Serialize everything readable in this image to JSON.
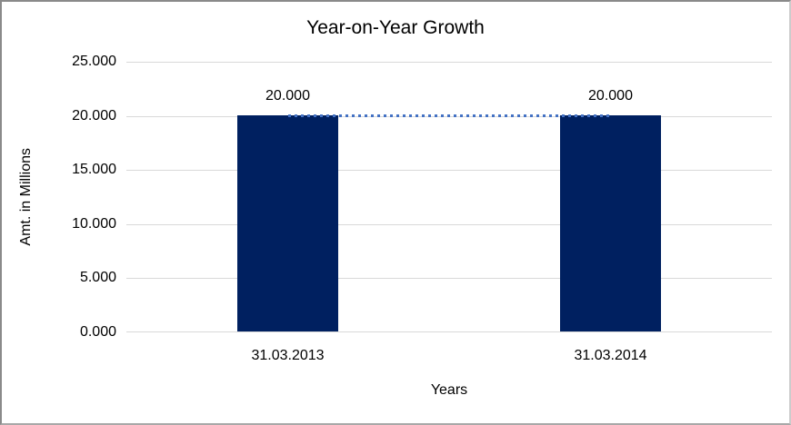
{
  "chart_data": {
    "type": "bar",
    "title": "Year-on-Year Growth",
    "xlabel": "Years",
    "ylabel": "Amt. in Millions",
    "categories": [
      "31.03.2013",
      "31.03.2014"
    ],
    "values": [
      20.0,
      20.0
    ],
    "data_labels": [
      "20.000",
      "20.000"
    ],
    "yticks": [
      "25.000",
      "20.000",
      "15.000",
      "10.000",
      "5.000",
      "0.000"
    ],
    "ylim": [
      0,
      25
    ],
    "grid": true,
    "legend": false,
    "trendline": {
      "style": "dotted",
      "from_value": 20.0,
      "to_value": 20.0
    },
    "colors": {
      "bar": "#002060",
      "trendline": "#4472C4",
      "gridline": "#D9D9D9",
      "text": "#000000"
    }
  }
}
